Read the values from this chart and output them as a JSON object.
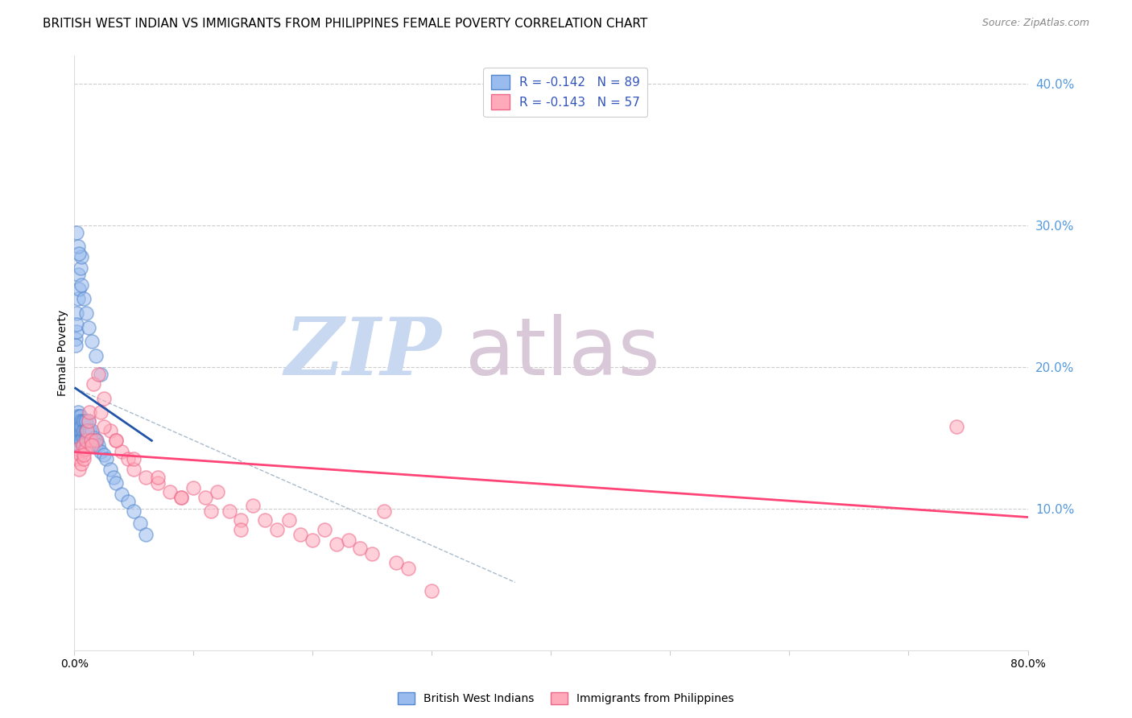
{
  "title": "BRITISH WEST INDIAN VS IMMIGRANTS FROM PHILIPPINES FEMALE POVERTY CORRELATION CHART",
  "source": "Source: ZipAtlas.com",
  "xlabel": "",
  "ylabel": "Female Poverty",
  "xlim": [
    0.0,
    0.8
  ],
  "ylim": [
    0.0,
    0.42
  ],
  "xticks": [
    0.0,
    0.1,
    0.2,
    0.3,
    0.4,
    0.5,
    0.6,
    0.7,
    0.8
  ],
  "xticklabels": [
    "0.0%",
    "",
    "",
    "",
    "",
    "",
    "",
    "",
    "80.0%"
  ],
  "yticks_right": [
    0.1,
    0.2,
    0.3,
    0.4
  ],
  "yticklabels_right": [
    "10.0%",
    "20.0%",
    "30.0%",
    "40.0%"
  ],
  "legend_r1": "R = -0.142   N = 89",
  "legend_r2": "R = -0.143   N = 57",
  "legend_label1": "British West Indians",
  "legend_label2": "Immigrants from Philippines",
  "color_blue_fill": "#99BBEE",
  "color_blue_edge": "#5588CC",
  "color_pink_fill": "#FFAABB",
  "color_pink_edge": "#EE6688",
  "color_blue_line": "#2255AA",
  "color_pink_line": "#FF4477",
  "color_gray_dashed": "#AABBCC",
  "blue_x": [
    0.001,
    0.001,
    0.001,
    0.001,
    0.002,
    0.002,
    0.002,
    0.002,
    0.002,
    0.002,
    0.002,
    0.002,
    0.003,
    0.003,
    0.003,
    0.003,
    0.003,
    0.003,
    0.003,
    0.004,
    0.004,
    0.004,
    0.004,
    0.004,
    0.004,
    0.004,
    0.005,
    0.005,
    0.005,
    0.005,
    0.005,
    0.006,
    0.006,
    0.006,
    0.006,
    0.007,
    0.007,
    0.007,
    0.008,
    0.008,
    0.008,
    0.009,
    0.009,
    0.009,
    0.01,
    0.01,
    0.01,
    0.011,
    0.012,
    0.012,
    0.013,
    0.014,
    0.015,
    0.016,
    0.017,
    0.018,
    0.019,
    0.02,
    0.022,
    0.025,
    0.027,
    0.03,
    0.033,
    0.035,
    0.04,
    0.045,
    0.05,
    0.055,
    0.06,
    0.001,
    0.001,
    0.002,
    0.002,
    0.002,
    0.003,
    0.003,
    0.004,
    0.005,
    0.006,
    0.002,
    0.003,
    0.004,
    0.006,
    0.008,
    0.01,
    0.012,
    0.015,
    0.018,
    0.022
  ],
  "blue_y": [
    0.15,
    0.155,
    0.16,
    0.145,
    0.165,
    0.158,
    0.162,
    0.148,
    0.155,
    0.16,
    0.145,
    0.152,
    0.168,
    0.155,
    0.162,
    0.148,
    0.158,
    0.145,
    0.152,
    0.165,
    0.158,
    0.145,
    0.162,
    0.15,
    0.155,
    0.148,
    0.162,
    0.155,
    0.148,
    0.165,
    0.158,
    0.162,
    0.155,
    0.148,
    0.158,
    0.162,
    0.15,
    0.155,
    0.162,
    0.155,
    0.148,
    0.162,
    0.155,
    0.148,
    0.162,
    0.155,
    0.148,
    0.155,
    0.162,
    0.148,
    0.155,
    0.148,
    0.155,
    0.148,
    0.15,
    0.145,
    0.148,
    0.145,
    0.14,
    0.138,
    0.135,
    0.128,
    0.122,
    0.118,
    0.11,
    0.105,
    0.098,
    0.09,
    0.082,
    0.22,
    0.215,
    0.238,
    0.225,
    0.23,
    0.248,
    0.265,
    0.255,
    0.27,
    0.278,
    0.295,
    0.285,
    0.28,
    0.258,
    0.248,
    0.238,
    0.228,
    0.218,
    0.208,
    0.195
  ],
  "pink_x": [
    0.002,
    0.003,
    0.004,
    0.005,
    0.006,
    0.007,
    0.008,
    0.009,
    0.01,
    0.011,
    0.012,
    0.013,
    0.014,
    0.016,
    0.018,
    0.02,
    0.022,
    0.025,
    0.03,
    0.035,
    0.04,
    0.045,
    0.05,
    0.06,
    0.07,
    0.08,
    0.09,
    0.1,
    0.11,
    0.12,
    0.13,
    0.14,
    0.15,
    0.16,
    0.17,
    0.18,
    0.19,
    0.2,
    0.21,
    0.22,
    0.23,
    0.24,
    0.25,
    0.26,
    0.27,
    0.28,
    0.3,
    0.74,
    0.008,
    0.015,
    0.025,
    0.035,
    0.05,
    0.07,
    0.09,
    0.115,
    0.14
  ],
  "pink_y": [
    0.135,
    0.142,
    0.128,
    0.138,
    0.132,
    0.145,
    0.135,
    0.142,
    0.148,
    0.155,
    0.162,
    0.168,
    0.148,
    0.188,
    0.148,
    0.195,
    0.168,
    0.178,
    0.155,
    0.148,
    0.14,
    0.135,
    0.128,
    0.122,
    0.118,
    0.112,
    0.108,
    0.115,
    0.108,
    0.112,
    0.098,
    0.092,
    0.102,
    0.092,
    0.085,
    0.092,
    0.082,
    0.078,
    0.085,
    0.075,
    0.078,
    0.072,
    0.068,
    0.098,
    0.062,
    0.058,
    0.042,
    0.158,
    0.138,
    0.145,
    0.158,
    0.148,
    0.135,
    0.122,
    0.108,
    0.098,
    0.085
  ],
  "blue_line_x": [
    0.001,
    0.065
  ],
  "blue_line_y": [
    0.185,
    0.148
  ],
  "pink_line_x": [
    0.0,
    0.8
  ],
  "pink_line_y": [
    0.14,
    0.094
  ],
  "gray_line_x": [
    0.001,
    0.37
  ],
  "gray_line_y": [
    0.185,
    0.048
  ]
}
